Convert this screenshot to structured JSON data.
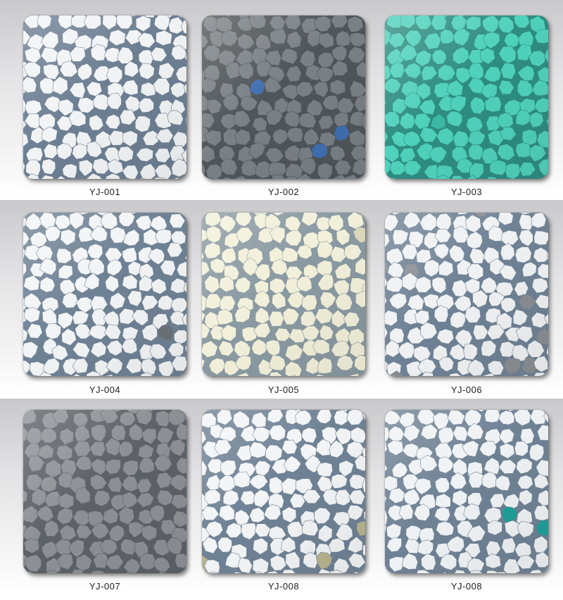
{
  "samples": [
    {
      "code": "YJ-001",
      "base": "#f1f3f5",
      "grout": "#6d7f93",
      "accent": "#8a96a4",
      "accent_count": 1
    },
    {
      "code": "YJ-002",
      "base": "#7a8085",
      "grout": "#4f5559",
      "accent": "#3f6fb2",
      "accent_count": 3
    },
    {
      "code": "YJ-003",
      "base": "#4fd1bc",
      "grout": "#2e8d80",
      "accent": "#3bb8a5",
      "accent_count": 1
    },
    {
      "code": "YJ-004",
      "base": "#f2f4f6",
      "grout": "#6f8295",
      "accent": "#6d7378",
      "accent_count": 3
    },
    {
      "code": "YJ-005",
      "base": "#f2f0da",
      "grout": "#8a9aa2",
      "accent": "#dcd8bc",
      "accent_count": 1
    },
    {
      "code": "YJ-006",
      "base": "#eff1f3",
      "grout": "#6f8295",
      "accent": "#8a8e92",
      "accent_count": 12
    },
    {
      "code": "YJ-007",
      "base": "#8d9196",
      "grout": "#5c6268",
      "accent": "#7f8489",
      "accent_count": 1
    },
    {
      "code": "YJ-008",
      "base": "#f2f4f6",
      "grout": "#6f8295",
      "accent": "#b7b48e",
      "accent_count": 4
    },
    {
      "code": "YJ-008",
      "base": "#eff2f4",
      "grout": "#6f8295",
      "accent": "#1ea09a",
      "accent_count": 6
    }
  ]
}
